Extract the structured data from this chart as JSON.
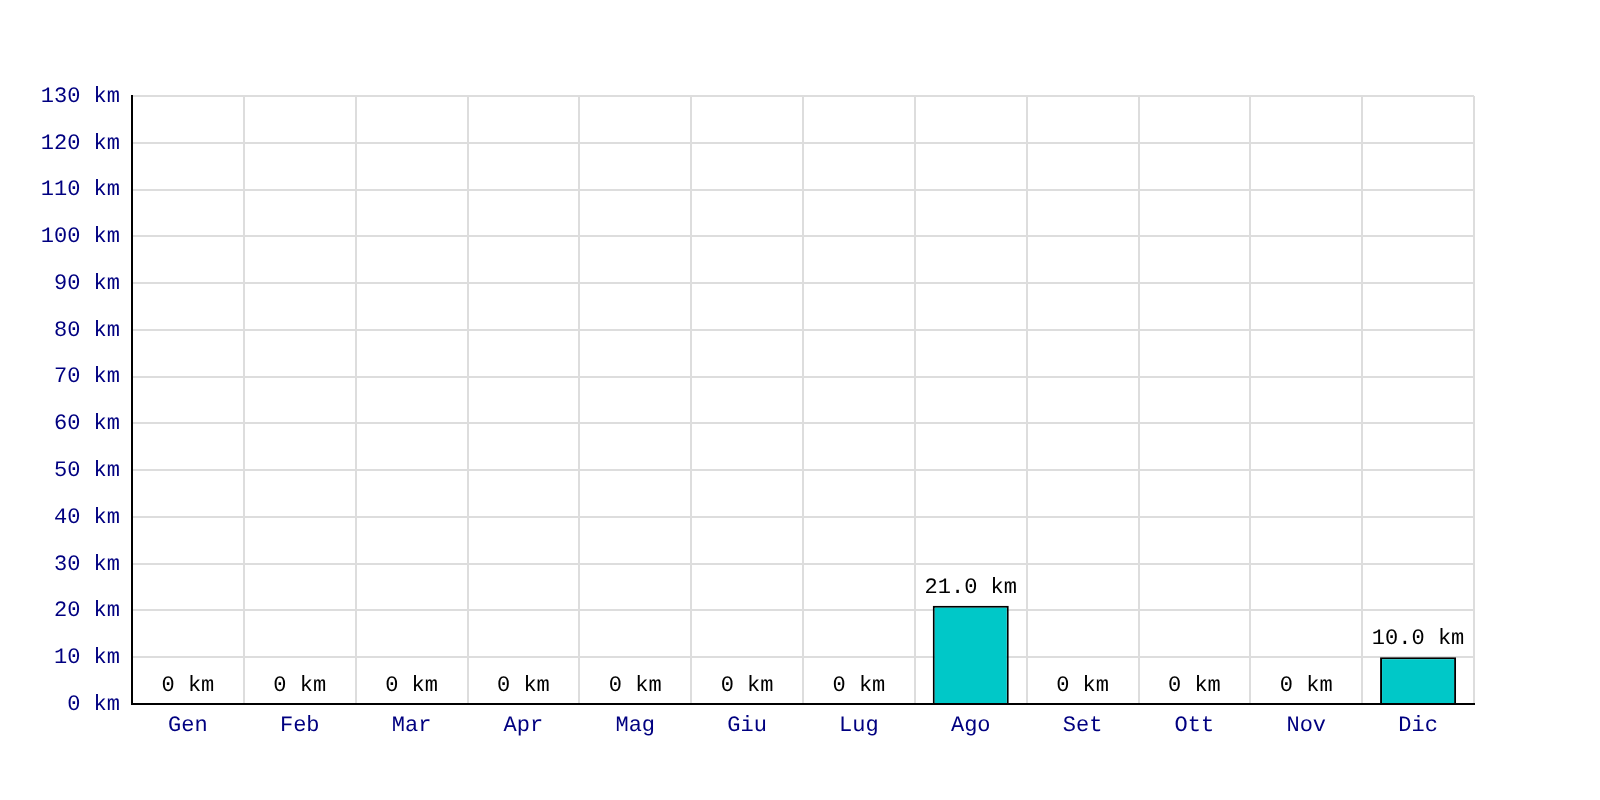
{
  "chart_data": {
    "type": "bar",
    "categories": [
      "Gen",
      "Feb",
      "Mar",
      "Apr",
      "Mag",
      "Giu",
      "Lug",
      "Ago",
      "Set",
      "Ott",
      "Nov",
      "Dic"
    ],
    "values": [
      0,
      0,
      0,
      0,
      0,
      0,
      0,
      21,
      0,
      0,
      0,
      10
    ],
    "value_labels": [
      "0 km",
      "0 km",
      "0 km",
      "0 km",
      "0 km",
      "0 km",
      "0 km",
      "21.0 km",
      "0 km",
      "0 km",
      "0 km",
      "10.0 km"
    ],
    "color": "#00c8c8",
    "ylim": [
      0,
      130
    ],
    "yticks": [
      {
        "value": 0,
        "label": "0 km"
      },
      {
        "value": 10,
        "label": "10 km"
      },
      {
        "value": 20,
        "label": "20 km"
      },
      {
        "value": 30,
        "label": "30 km"
      },
      {
        "value": 40,
        "label": "40 km"
      },
      {
        "value": 50,
        "label": "50 km"
      },
      {
        "value": 60,
        "label": "60 km"
      },
      {
        "value": 70,
        "label": "70 km"
      },
      {
        "value": 80,
        "label": "80 km"
      },
      {
        "value": 90,
        "label": "90 km"
      },
      {
        "value": 100,
        "label": "100 km"
      },
      {
        "value": 110,
        "label": "110 km"
      },
      {
        "value": 120,
        "label": "120 km"
      },
      {
        "value": 130,
        "label": "130 km"
      }
    ],
    "grid": true
  }
}
